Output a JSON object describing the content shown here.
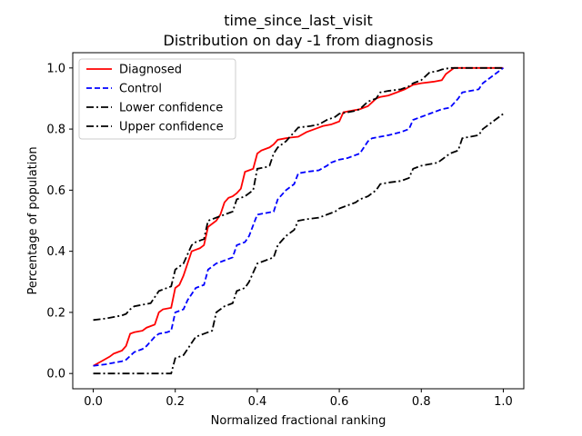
{
  "chart_data": {
    "type": "line",
    "title": "time_since_last_visit",
    "subtitle": "Distribution on day -1 from diagnosis",
    "xlabel": "Normalized fractional ranking",
    "ylabel": "Percentage of population",
    "xlim": [
      -0.05,
      1.05
    ],
    "ylim": [
      -0.05,
      1.05
    ],
    "x_ticks": [
      0.0,
      0.2,
      0.4,
      0.6,
      0.8,
      1.0
    ],
    "x_tick_labels": [
      "0.0",
      "0.2",
      "0.4",
      "0.6",
      "0.8",
      "1.0"
    ],
    "y_ticks": [
      0.0,
      0.2,
      0.4,
      0.6,
      0.8,
      1.0
    ],
    "y_tick_labels": [
      "0.0",
      "0.2",
      "0.4",
      "0.6",
      "0.8",
      "1.0"
    ],
    "grid": false,
    "legend_position": "top-left",
    "series": [
      {
        "name": "Diagnosed",
        "color": "#ff0000",
        "dash": "solid",
        "x": [
          0.0,
          0.02,
          0.04,
          0.05,
          0.06,
          0.07,
          0.08,
          0.09,
          0.1,
          0.12,
          0.13,
          0.15,
          0.16,
          0.17,
          0.19,
          0.2,
          0.21,
          0.22,
          0.23,
          0.24,
          0.25,
          0.26,
          0.27,
          0.28,
          0.29,
          0.3,
          0.31,
          0.32,
          0.33,
          0.34,
          0.35,
          0.36,
          0.37,
          0.38,
          0.39,
          0.4,
          0.41,
          0.43,
          0.44,
          0.45,
          0.47,
          0.48,
          0.5,
          0.52,
          0.55,
          0.56,
          0.58,
          0.59,
          0.6,
          0.61,
          0.63,
          0.65,
          0.67,
          0.69,
          0.7,
          0.72,
          0.74,
          0.76,
          0.78,
          0.8,
          0.83,
          0.85,
          0.86,
          0.88,
          0.89,
          0.9,
          0.92,
          0.94,
          0.95,
          0.97,
          1.0
        ],
        "y": [
          0.025,
          0.04,
          0.055,
          0.065,
          0.07,
          0.075,
          0.09,
          0.13,
          0.135,
          0.14,
          0.15,
          0.16,
          0.2,
          0.21,
          0.215,
          0.28,
          0.29,
          0.32,
          0.36,
          0.4,
          0.405,
          0.41,
          0.42,
          0.48,
          0.49,
          0.5,
          0.52,
          0.56,
          0.575,
          0.58,
          0.59,
          0.605,
          0.66,
          0.665,
          0.67,
          0.72,
          0.73,
          0.74,
          0.75,
          0.765,
          0.77,
          0.772,
          0.775,
          0.79,
          0.805,
          0.81,
          0.815,
          0.82,
          0.825,
          0.855,
          0.86,
          0.865,
          0.875,
          0.9,
          0.905,
          0.91,
          0.92,
          0.93,
          0.945,
          0.95,
          0.955,
          0.96,
          0.98,
          1.0,
          1.0,
          1.0,
          1.0,
          1.0,
          1.0,
          1.0,
          1.0
        ]
      },
      {
        "name": "Control",
        "color": "#0000ff",
        "dash": "dashed",
        "x": [
          0.0,
          0.03,
          0.05,
          0.07,
          0.08,
          0.1,
          0.12,
          0.13,
          0.15,
          0.16,
          0.18,
          0.19,
          0.2,
          0.22,
          0.23,
          0.25,
          0.27,
          0.28,
          0.3,
          0.32,
          0.34,
          0.35,
          0.37,
          0.38,
          0.4,
          0.42,
          0.44,
          0.45,
          0.47,
          0.49,
          0.5,
          0.52,
          0.55,
          0.57,
          0.58,
          0.6,
          0.62,
          0.63,
          0.65,
          0.67,
          0.68,
          0.7,
          0.72,
          0.75,
          0.77,
          0.78,
          0.8,
          0.82,
          0.84,
          0.85,
          0.87,
          0.89,
          0.9,
          0.92,
          0.94,
          0.95,
          0.97,
          1.0
        ],
        "y": [
          0.025,
          0.03,
          0.035,
          0.04,
          0.045,
          0.07,
          0.08,
          0.09,
          0.12,
          0.13,
          0.135,
          0.14,
          0.2,
          0.21,
          0.24,
          0.28,
          0.29,
          0.34,
          0.36,
          0.37,
          0.38,
          0.42,
          0.43,
          0.45,
          0.52,
          0.525,
          0.53,
          0.57,
          0.6,
          0.62,
          0.655,
          0.66,
          0.665,
          0.68,
          0.69,
          0.7,
          0.705,
          0.71,
          0.72,
          0.76,
          0.77,
          0.775,
          0.78,
          0.79,
          0.8,
          0.83,
          0.84,
          0.85,
          0.86,
          0.865,
          0.87,
          0.9,
          0.92,
          0.925,
          0.93,
          0.95,
          0.97,
          1.0
        ]
      },
      {
        "name": "Lower confidence",
        "color": "#000000",
        "dash": "dashdot",
        "x": [
          0.0,
          0.03,
          0.05,
          0.07,
          0.08,
          0.09,
          0.1,
          0.12,
          0.14,
          0.16,
          0.18,
          0.19,
          0.2,
          0.22,
          0.24,
          0.25,
          0.27,
          0.28,
          0.3,
          0.32,
          0.34,
          0.35,
          0.37,
          0.38,
          0.39,
          0.4,
          0.42,
          0.43,
          0.44,
          0.45,
          0.47,
          0.49,
          0.5,
          0.53,
          0.55,
          0.57,
          0.59,
          0.6,
          0.62,
          0.64,
          0.65,
          0.67,
          0.69,
          0.7,
          0.72,
          0.75,
          0.77,
          0.78,
          0.8,
          0.82,
          0.84,
          0.85,
          0.87,
          0.88,
          0.9,
          0.92,
          0.94,
          0.95,
          0.97,
          1.0
        ],
        "y": [
          0.175,
          0.18,
          0.185,
          0.19,
          0.195,
          0.21,
          0.22,
          0.225,
          0.23,
          0.27,
          0.28,
          0.285,
          0.34,
          0.36,
          0.42,
          0.43,
          0.44,
          0.5,
          0.51,
          0.52,
          0.53,
          0.57,
          0.58,
          0.59,
          0.6,
          0.67,
          0.675,
          0.68,
          0.72,
          0.74,
          0.76,
          0.79,
          0.805,
          0.81,
          0.815,
          0.83,
          0.84,
          0.85,
          0.855,
          0.86,
          0.865,
          0.89,
          0.9,
          0.92,
          0.925,
          0.93,
          0.94,
          0.95,
          0.96,
          0.985,
          0.99,
          0.995,
          1.0,
          1.0,
          1.0,
          1.0,
          1.0,
          1.0,
          1.0,
          1.0
        ]
      },
      {
        "name": "Upper confidence",
        "color": "#000000",
        "dash": "dashdot",
        "x": [
          0.0,
          0.03,
          0.05,
          0.07,
          0.1,
          0.13,
          0.15,
          0.17,
          0.18,
          0.19,
          0.2,
          0.22,
          0.24,
          0.25,
          0.27,
          0.29,
          0.3,
          0.32,
          0.34,
          0.35,
          0.37,
          0.38,
          0.4,
          0.42,
          0.44,
          0.45,
          0.47,
          0.49,
          0.5,
          0.52,
          0.55,
          0.57,
          0.59,
          0.6,
          0.62,
          0.64,
          0.65,
          0.67,
          0.69,
          0.7,
          0.72,
          0.75,
          0.77,
          0.78,
          0.8,
          0.82,
          0.84,
          0.85,
          0.87,
          0.89,
          0.9,
          0.92,
          0.94,
          0.95,
          0.97,
          1.0
        ],
        "y": [
          0.0,
          0.0,
          0.0,
          0.0,
          0.0,
          0.0,
          0.0,
          0.0,
          0.0,
          0.0,
          0.05,
          0.06,
          0.1,
          0.12,
          0.13,
          0.14,
          0.2,
          0.22,
          0.23,
          0.27,
          0.28,
          0.3,
          0.36,
          0.37,
          0.38,
          0.42,
          0.45,
          0.47,
          0.5,
          0.505,
          0.51,
          0.52,
          0.53,
          0.54,
          0.55,
          0.56,
          0.57,
          0.58,
          0.6,
          0.62,
          0.625,
          0.63,
          0.64,
          0.67,
          0.68,
          0.685,
          0.69,
          0.7,
          0.72,
          0.73,
          0.77,
          0.775,
          0.78,
          0.8,
          0.82,
          0.85
        ]
      }
    ]
  }
}
